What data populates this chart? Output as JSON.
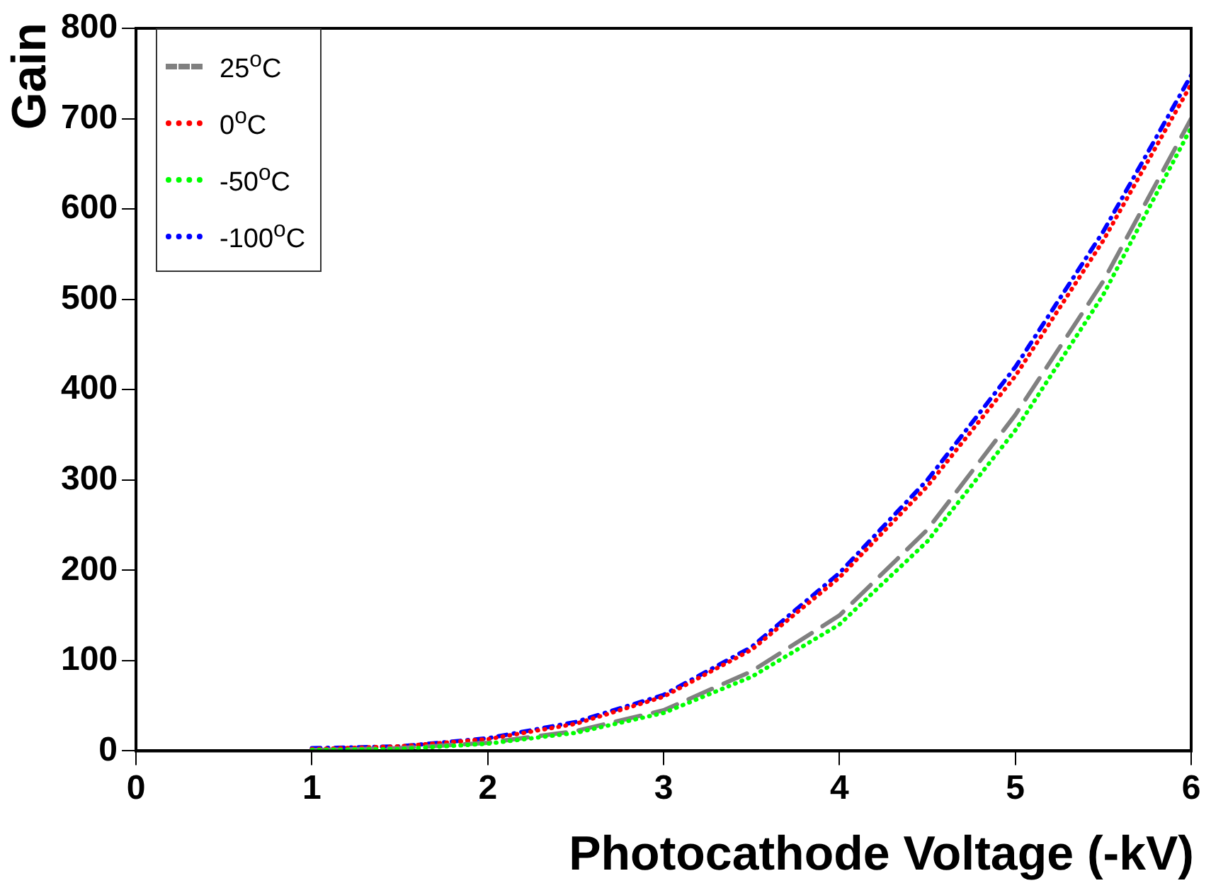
{
  "chart_data": {
    "type": "line",
    "xlabel": "Photocathode Voltage (-kV)",
    "ylabel": "Gain",
    "x": [
      1,
      1.5,
      2,
      2.5,
      3,
      3.5,
      4,
      4.5,
      5,
      5.5,
      6
    ],
    "series": [
      {
        "name": "25$^{o}$C",
        "color": "#808080",
        "line_style": "dashed",
        "values": [
          1,
          3,
          9,
          22,
          45,
          88,
          150,
          245,
          372,
          520,
          700
        ]
      },
      {
        "name": "0$^{o}$C",
        "color": "#ff0000",
        "line_style": "dotted",
        "values": [
          2,
          5,
          13,
          30,
          60,
          112,
          192,
          293,
          415,
          565,
          738
        ]
      },
      {
        "name": "-50$^{o}$C",
        "color": "#00ff00",
        "line_style": "dotted",
        "values": [
          1,
          2,
          8,
          20,
          42,
          82,
          140,
          232,
          355,
          505,
          690
        ]
      },
      {
        "name": "-100$^{o}$C",
        "color": "#0000ff",
        "line_style": "dashdot",
        "values": [
          3,
          5,
          14,
          32,
          62,
          115,
          197,
          300,
          425,
          575,
          748
        ]
      }
    ],
    "xlim": [
      0,
      6
    ],
    "ylim": [
      0,
      800
    ],
    "xticks": [
      0,
      1,
      2,
      3,
      4,
      5,
      6
    ],
    "yticks": [
      0,
      100,
      200,
      300,
      400,
      500,
      600,
      700,
      800
    ],
    "grid": false,
    "legend": "top left",
    "marker": "none"
  }
}
